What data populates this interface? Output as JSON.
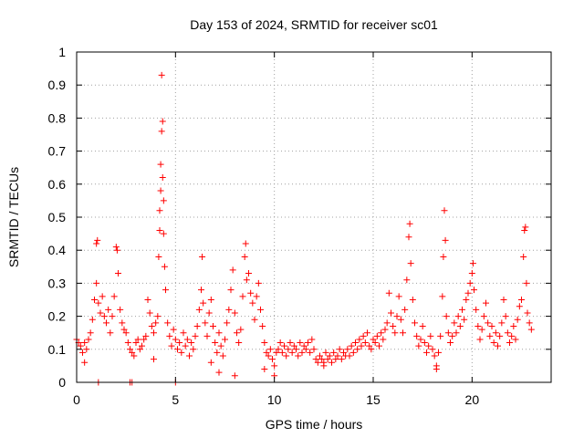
{
  "chart_data": {
    "type": "scatter",
    "title": "Day 153 of 2024, SRMTID for receiver sc01",
    "xlabel": "GPS time / hours",
    "ylabel": "SRMTID / TECUs",
    "xlim": [
      0,
      24
    ],
    "ylim": [
      0,
      1
    ],
    "xticks": [
      0,
      5,
      10,
      15,
      20
    ],
    "xtick_labels": [
      "0",
      "5",
      "10",
      "15",
      "20"
    ],
    "yticks": [
      0,
      0.1,
      0.2,
      0.3,
      0.4,
      0.5,
      0.6,
      0.7,
      0.8,
      0.9,
      1
    ],
    "ytick_labels": [
      "0",
      "0.1",
      "0.2",
      "0.3",
      "0.4",
      "0.5",
      "0.6",
      "0.7",
      "0.8",
      "0.9",
      "1"
    ],
    "grid": true,
    "marker": "+",
    "color": "#ff0000",
    "series": [
      {
        "name": "SRMTID",
        "points": [
          [
            0.0,
            0.13
          ],
          [
            0.1,
            0.12
          ],
          [
            0.2,
            0.11
          ],
          [
            0.3,
            0.09
          ],
          [
            0.4,
            0.12
          ],
          [
            0.5,
            0.1
          ],
          [
            0.6,
            0.13
          ],
          [
            0.7,
            0.15
          ],
          [
            0.8,
            0.19
          ],
          [
            0.9,
            0.25
          ],
          [
            1.0,
            0.3
          ],
          [
            1.0,
            0.42
          ],
          [
            1.05,
            0.43
          ],
          [
            1.1,
            0.24
          ],
          [
            1.2,
            0.21
          ],
          [
            1.3,
            0.26
          ],
          [
            1.4,
            0.2
          ],
          [
            1.5,
            0.18
          ],
          [
            1.6,
            0.22
          ],
          [
            1.7,
            0.15
          ],
          [
            1.8,
            0.2
          ],
          [
            1.9,
            0.26
          ],
          [
            2.0,
            0.41
          ],
          [
            2.05,
            0.4
          ],
          [
            2.1,
            0.33
          ],
          [
            2.2,
            0.22
          ],
          [
            2.3,
            0.18
          ],
          [
            2.4,
            0.16
          ],
          [
            2.5,
            0.15
          ],
          [
            2.6,
            0.12
          ],
          [
            2.7,
            0.1
          ],
          [
            2.8,
            0.09
          ],
          [
            2.9,
            0.08
          ],
          [
            3.0,
            0.12
          ],
          [
            3.1,
            0.13
          ],
          [
            3.2,
            0.1
          ],
          [
            3.3,
            0.11
          ],
          [
            3.4,
            0.13
          ],
          [
            3.5,
            0.14
          ],
          [
            3.6,
            0.25
          ],
          [
            3.7,
            0.21
          ],
          [
            3.8,
            0.17
          ],
          [
            3.9,
            0.15
          ],
          [
            4.0,
            0.18
          ],
          [
            4.1,
            0.2
          ],
          [
            4.15,
            0.38
          ],
          [
            4.2,
            0.46
          ],
          [
            4.2,
            0.52
          ],
          [
            4.25,
            0.58
          ],
          [
            4.25,
            0.66
          ],
          [
            4.3,
            0.76
          ],
          [
            4.3,
            0.93
          ],
          [
            4.35,
            0.79
          ],
          [
            4.35,
            0.62
          ],
          [
            4.4,
            0.55
          ],
          [
            4.4,
            0.45
          ],
          [
            4.45,
            0.35
          ],
          [
            4.5,
            0.28
          ],
          [
            4.6,
            0.18
          ],
          [
            4.7,
            0.14
          ],
          [
            4.8,
            0.11
          ],
          [
            4.9,
            0.16
          ],
          [
            5.0,
            0.13
          ],
          [
            5.1,
            0.1
          ],
          [
            5.2,
            0.12
          ],
          [
            5.3,
            0.09
          ],
          [
            5.4,
            0.15
          ],
          [
            5.5,
            0.11
          ],
          [
            5.6,
            0.13
          ],
          [
            5.7,
            0.08
          ],
          [
            5.8,
            0.12
          ],
          [
            5.9,
            0.1
          ],
          [
            6.0,
            0.14
          ],
          [
            6.1,
            0.17
          ],
          [
            6.2,
            0.22
          ],
          [
            6.3,
            0.28
          ],
          [
            6.35,
            0.38
          ],
          [
            6.4,
            0.24
          ],
          [
            6.5,
            0.18
          ],
          [
            6.6,
            0.14
          ],
          [
            6.7,
            0.21
          ],
          [
            6.8,
            0.25
          ],
          [
            6.9,
            0.17
          ],
          [
            7.0,
            0.12
          ],
          [
            7.1,
            0.09
          ],
          [
            7.2,
            0.15
          ],
          [
            7.3,
            0.11
          ],
          [
            7.4,
            0.08
          ],
          [
            7.5,
            0.13
          ],
          [
            7.6,
            0.18
          ],
          [
            7.7,
            0.22
          ],
          [
            7.8,
            0.28
          ],
          [
            7.9,
            0.34
          ],
          [
            8.0,
            0.21
          ],
          [
            8.1,
            0.15
          ],
          [
            8.2,
            0.12
          ],
          [
            8.3,
            0.16
          ],
          [
            8.4,
            0.26
          ],
          [
            8.5,
            0.38
          ],
          [
            8.55,
            0.42
          ],
          [
            8.6,
            0.31
          ],
          [
            8.7,
            0.33
          ],
          [
            8.8,
            0.27
          ],
          [
            8.9,
            0.24
          ],
          [
            9.0,
            0.19
          ],
          [
            9.1,
            0.26
          ],
          [
            9.2,
            0.3
          ],
          [
            9.3,
            0.22
          ],
          [
            9.4,
            0.17
          ],
          [
            9.5,
            0.12
          ],
          [
            9.6,
            0.09
          ],
          [
            9.7,
            0.08
          ],
          [
            9.8,
            0.1
          ],
          [
            9.9,
            0.07
          ],
          [
            10.0,
            0.05
          ],
          [
            10.1,
            0.09
          ],
          [
            10.2,
            0.1
          ],
          [
            10.3,
            0.12
          ],
          [
            10.4,
            0.09
          ],
          [
            10.5,
            0.11
          ],
          [
            10.6,
            0.08
          ],
          [
            10.7,
            0.1
          ],
          [
            10.8,
            0.12
          ],
          [
            10.9,
            0.09
          ],
          [
            11.0,
            0.11
          ],
          [
            11.1,
            0.1
          ],
          [
            11.2,
            0.08
          ],
          [
            11.3,
            0.12
          ],
          [
            11.4,
            0.09
          ],
          [
            11.5,
            0.11
          ],
          [
            11.6,
            0.1
          ],
          [
            11.7,
            0.12
          ],
          [
            11.8,
            0.09
          ],
          [
            11.9,
            0.13
          ],
          [
            12.0,
            0.1
          ],
          [
            12.1,
            0.07
          ],
          [
            12.2,
            0.06
          ],
          [
            12.3,
            0.08
          ],
          [
            12.4,
            0.07
          ],
          [
            12.5,
            0.06
          ],
          [
            12.6,
            0.09
          ],
          [
            12.7,
            0.07
          ],
          [
            12.8,
            0.08
          ],
          [
            12.9,
            0.06
          ],
          [
            13.0,
            0.09
          ],
          [
            13.1,
            0.07
          ],
          [
            13.2,
            0.08
          ],
          [
            13.3,
            0.1
          ],
          [
            13.4,
            0.07
          ],
          [
            13.5,
            0.09
          ],
          [
            13.6,
            0.08
          ],
          [
            13.7,
            0.1
          ],
          [
            13.8,
            0.08
          ],
          [
            13.9,
            0.11
          ],
          [
            14.0,
            0.09
          ],
          [
            14.1,
            0.12
          ],
          [
            14.2,
            0.1
          ],
          [
            14.3,
            0.13
          ],
          [
            14.4,
            0.11
          ],
          [
            14.5,
            0.14
          ],
          [
            14.6,
            0.12
          ],
          [
            14.7,
            0.15
          ],
          [
            14.8,
            0.11
          ],
          [
            14.9,
            0.1
          ],
          [
            15.0,
            0.13
          ],
          [
            15.1,
            0.12
          ],
          [
            15.2,
            0.14
          ],
          [
            15.3,
            0.11
          ],
          [
            15.4,
            0.15
          ],
          [
            15.5,
            0.13
          ],
          [
            15.6,
            0.16
          ],
          [
            15.7,
            0.18
          ],
          [
            15.8,
            0.27
          ],
          [
            15.9,
            0.21
          ],
          [
            16.0,
            0.17
          ],
          [
            16.1,
            0.15
          ],
          [
            16.2,
            0.2
          ],
          [
            16.3,
            0.26
          ],
          [
            16.4,
            0.19
          ],
          [
            16.5,
            0.15
          ],
          [
            16.6,
            0.22
          ],
          [
            16.7,
            0.31
          ],
          [
            16.8,
            0.44
          ],
          [
            16.85,
            0.48
          ],
          [
            16.9,
            0.36
          ],
          [
            17.0,
            0.25
          ],
          [
            17.1,
            0.18
          ],
          [
            17.2,
            0.14
          ],
          [
            17.3,
            0.11
          ],
          [
            17.4,
            0.13
          ],
          [
            17.5,
            0.17
          ],
          [
            17.6,
            0.12
          ],
          [
            17.7,
            0.09
          ],
          [
            17.8,
            0.11
          ],
          [
            17.9,
            0.14
          ],
          [
            18.0,
            0.1
          ],
          [
            18.1,
            0.08
          ],
          [
            18.2,
            0.05
          ],
          [
            18.3,
            0.09
          ],
          [
            18.4,
            0.14
          ],
          [
            18.5,
            0.26
          ],
          [
            18.55,
            0.38
          ],
          [
            18.6,
            0.52
          ],
          [
            18.65,
            0.43
          ],
          [
            18.7,
            0.2
          ],
          [
            18.8,
            0.15
          ],
          [
            18.9,
            0.12
          ],
          [
            19.0,
            0.14
          ],
          [
            19.1,
            0.18
          ],
          [
            19.2,
            0.15
          ],
          [
            19.3,
            0.2
          ],
          [
            19.4,
            0.17
          ],
          [
            19.5,
            0.22
          ],
          [
            19.6,
            0.19
          ],
          [
            19.7,
            0.25
          ],
          [
            19.8,
            0.27
          ],
          [
            19.9,
            0.3
          ],
          [
            20.0,
            0.33
          ],
          [
            20.05,
            0.36
          ],
          [
            20.1,
            0.28
          ],
          [
            20.2,
            0.22
          ],
          [
            20.3,
            0.17
          ],
          [
            20.4,
            0.13
          ],
          [
            20.5,
            0.16
          ],
          [
            20.6,
            0.2
          ],
          [
            20.7,
            0.24
          ],
          [
            20.8,
            0.18
          ],
          [
            20.9,
            0.14
          ],
          [
            21.0,
            0.17
          ],
          [
            21.1,
            0.12
          ],
          [
            21.2,
            0.15
          ],
          [
            21.3,
            0.11
          ],
          [
            21.4,
            0.14
          ],
          [
            21.5,
            0.18
          ],
          [
            21.6,
            0.25
          ],
          [
            21.7,
            0.2
          ],
          [
            21.8,
            0.15
          ],
          [
            21.9,
            0.12
          ],
          [
            22.0,
            0.14
          ],
          [
            22.1,
            0.17
          ],
          [
            22.2,
            0.13
          ],
          [
            22.3,
            0.19
          ],
          [
            22.4,
            0.23
          ],
          [
            22.5,
            0.25
          ],
          [
            22.6,
            0.38
          ],
          [
            22.65,
            0.46
          ],
          [
            22.7,
            0.47
          ],
          [
            22.75,
            0.3
          ],
          [
            22.8,
            0.21
          ],
          [
            22.9,
            0.18
          ],
          [
            23.0,
            0.16
          ],
          [
            0.4,
            0.06
          ],
          [
            1.1,
            0.0
          ],
          [
            2.7,
            0.0
          ],
          [
            2.8,
            0.0
          ],
          [
            5.0,
            0.0
          ],
          [
            10.0,
            0.02
          ],
          [
            7.2,
            0.03
          ],
          [
            8.0,
            0.02
          ],
          [
            12.5,
            0.05
          ],
          [
            18.2,
            0.04
          ],
          [
            3.9,
            0.07
          ],
          [
            6.8,
            0.06
          ],
          [
            9.5,
            0.04
          ]
        ]
      }
    ]
  }
}
